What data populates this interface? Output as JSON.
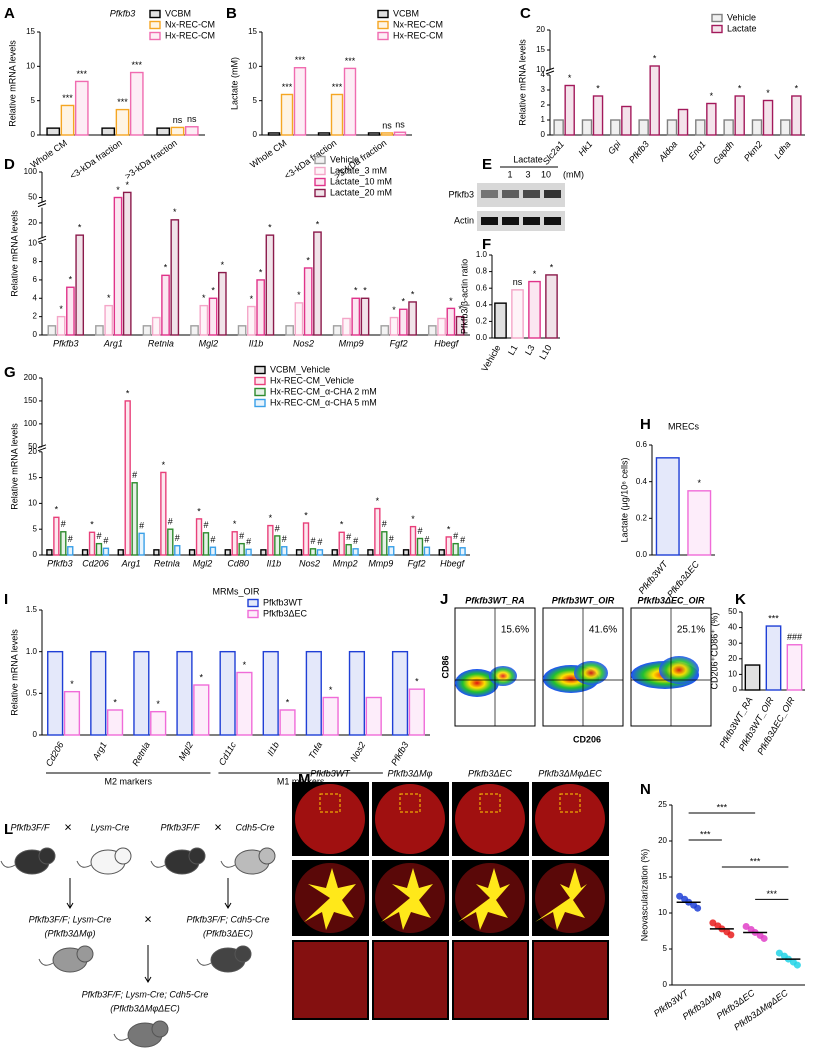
{
  "chart_data": [
    {
      "type": "bar",
      "panel": "A",
      "title": "Pfkfb3",
      "ylabel": "Relative mRNA levels",
      "categories": [
        "Whole CM",
        "<3-kDa fraction",
        ">3-kDa fraction"
      ],
      "series": [
        {
          "name": "VCBM",
          "color": "#000000",
          "values": [
            1,
            1,
            1
          ]
        },
        {
          "name": "Nx-REC-CM",
          "color": "#f5a623",
          "values": [
            4.3,
            3.7,
            1.1
          ],
          "value_annotations": [
            "***",
            "***",
            "ns"
          ]
        },
        {
          "name": "Hx-REC-CM",
          "color": "#f06bb0",
          "values": [
            7.8,
            9.1,
            1.2
          ],
          "value_annotations": [
            "***",
            "***",
            "ns"
          ]
        }
      ],
      "ylim": [
        0,
        15
      ],
      "yticks": [
        0,
        5,
        10,
        15
      ]
    },
    {
      "type": "bar",
      "panel": "B",
      "ylabel": "Lactate (mM)",
      "categories": [
        "Whole CM",
        "<3-kDa fraction",
        ">3-kDa fraction"
      ],
      "series": [
        {
          "name": "VCBM",
          "color": "#000000",
          "values": [
            0.3,
            0.3,
            0.3
          ]
        },
        {
          "name": "Nx-REC-CM",
          "color": "#f5a623",
          "values": [
            5.9,
            5.9,
            0.3
          ],
          "value_annotations": [
            "***",
            "***",
            "ns"
          ]
        },
        {
          "name": "Hx-REC-CM",
          "color": "#f06bb0",
          "values": [
            9.8,
            9.7,
            0.4
          ],
          "value_annotations": [
            "***",
            "***",
            "ns"
          ]
        }
      ],
      "ylim": [
        0,
        15
      ],
      "yticks": [
        0,
        5,
        10,
        15
      ]
    },
    {
      "type": "bar",
      "panel": "C",
      "ylabel": "Relative mRNA levels",
      "categories": [
        "Slc2a1",
        "Hk1",
        "Gpi",
        "Pfkfb3",
        "Aldoa",
        "Eno1",
        "Gapdh",
        "Pkm2",
        "Ldha"
      ],
      "series": [
        {
          "name": "Vehicle",
          "color": "#808080",
          "values": [
            1,
            1,
            1,
            1,
            1,
            1,
            1,
            1,
            1
          ]
        },
        {
          "name": "Lactate",
          "color": "#a3195b",
          "values": [
            3.3,
            2.6,
            1.9,
            11,
            1.7,
            2.1,
            2.6,
            2.3,
            2.6
          ],
          "value_annotations": [
            "*",
            "*",
            null,
            "*",
            null,
            "*",
            "*",
            "*",
            "*"
          ]
        }
      ],
      "ylim": [
        0,
        20
      ],
      "ysegments": [
        [
          0,
          4
        ],
        [
          10,
          20
        ]
      ],
      "yticks": [
        0,
        1,
        2,
        3,
        4,
        10,
        15,
        20
      ]
    },
    {
      "type": "bar",
      "panel": "D",
      "ylabel": "Relative mRNA levels",
      "categories": [
        "Pfkfb3",
        "Arg1",
        "Retnla",
        "Mgl2",
        "Il1b",
        "Nos2",
        "Mmp9",
        "Fgf2",
        "Hbegf"
      ],
      "series": [
        {
          "name": "Vehicle",
          "color": "#a0a0a0",
          "values": [
            1,
            1,
            1,
            1,
            1,
            1,
            1,
            1,
            1
          ]
        },
        {
          "name": "Lactate_3 mM",
          "color": "#f4a6c8",
          "values": [
            2,
            3.2,
            1.9,
            3.2,
            3.1,
            3.5,
            1.8,
            1.9,
            1.8
          ],
          "value_annotations": [
            "*",
            "*",
            null,
            "*",
            "*",
            "*",
            null,
            "*",
            null
          ]
        },
        {
          "name": "Lactate_10 mM",
          "color": "#e0338a",
          "values": [
            5.2,
            50,
            6.5,
            4,
            6,
            7.3,
            4,
            2.8,
            2.9
          ],
          "value_annotations": [
            "*",
            "*",
            "*",
            "*",
            "*",
            "*",
            "*",
            "*",
            "*"
          ]
        },
        {
          "name": "Lactate_20 mM",
          "color": "#8b1a4b",
          "values": [
            16,
            60,
            21,
            6.8,
            16,
            17,
            4,
            3.6,
            2
          ],
          "value_annotations": [
            "*",
            "*",
            "*",
            "*",
            "*",
            "*",
            "*",
            "*",
            "*"
          ]
        }
      ],
      "ylim": [
        0,
        100
      ],
      "ysegments": [
        [
          0,
          10
        ],
        [
          15,
          25
        ],
        [
          40,
          100
        ]
      ],
      "yticks": [
        0,
        2,
        4,
        6,
        8,
        10,
        20,
        50,
        100
      ]
    },
    {
      "type": "bar",
      "panel": "F",
      "ylabel": "Pfkfb3/β-actin ratio",
      "categories": [
        "Vehicle",
        "L1",
        "L3",
        "L10"
      ],
      "values": [
        0.42,
        0.58,
        0.68,
        0.76
      ],
      "colors": [
        "#000000",
        "#f4a6c8",
        "#e0338a",
        "#8b1a4b"
      ],
      "value_annotations": [
        null,
        "ns",
        "*",
        "*"
      ],
      "ylim": [
        0,
        1
      ],
      "yticks": [
        {
          "value": 0,
          "label": "0.0"
        },
        0.2,
        0.4,
        0.6,
        0.8,
        {
          "value": 1,
          "label": "1.0"
        }
      ]
    },
    {
      "type": "bar",
      "panel": "G",
      "ylabel": "Relative mRNA levels",
      "categories": [
        "Pfkfb3",
        "Cd206",
        "Arg1",
        "Retnla",
        "Mgl2",
        "Cd80",
        "Il1b",
        "Nos2",
        "Mmp2",
        "Mmp9",
        "Fgf2",
        "Hbegf"
      ],
      "series": [
        {
          "name": "VCBM_Vehicle",
          "color": "#000000",
          "values": [
            1,
            1,
            1,
            1,
            1,
            1,
            1,
            1,
            1,
            1,
            1,
            1
          ]
        },
        {
          "name": "Hx-REC-CM_Vehicle",
          "color": "#e8407a",
          "values": [
            7.3,
            4.4,
            150,
            16,
            7,
            4.5,
            5.7,
            6.2,
            4.4,
            9,
            5.5,
            3.5
          ],
          "value_annotations": [
            "*",
            "*",
            "*",
            "*",
            "*",
            "*",
            "*",
            "*",
            "*",
            "*",
            "*",
            "*"
          ]
        },
        {
          "name": "Hx-REC-CM_α-CHA 2 mM",
          "color": "#2e8b2e",
          "values": [
            4.5,
            2.2,
            14,
            5,
            4.3,
            2.2,
            3.7,
            1.2,
            2,
            4.5,
            3.2,
            2.2
          ],
          "value_annotations": [
            "#",
            "#",
            "#",
            "#",
            "#",
            "#",
            "#",
            "#",
            "#",
            "#",
            "#",
            "#"
          ]
        },
        {
          "name": "Hx-REC-CM_α-CHA 5 mM",
          "color": "#3aa0e8",
          "values": [
            1.6,
            1.3,
            4.2,
            1.8,
            1.5,
            1.1,
            1.6,
            1,
            1.2,
            1.6,
            1.5,
            1.4
          ],
          "value_annotations": [
            "#",
            "#",
            "#",
            "#",
            "#",
            "#",
            "#",
            "#",
            "#",
            "#",
            "#",
            "#"
          ]
        }
      ],
      "ylim": [
        0,
        200
      ],
      "ysegments": [
        [
          0,
          20
        ],
        [
          50,
          200
        ]
      ],
      "yticks": [
        0,
        5,
        10,
        15,
        20,
        50,
        100,
        150,
        200
      ]
    },
    {
      "type": "bar",
      "panel": "H",
      "title": "MRECs",
      "ylabel": "Lactate (μg/10⁶ cells)",
      "categories": [
        "Pfkfb3WT",
        "Pfkfb3ΔEC"
      ],
      "values": [
        0.53,
        0.35
      ],
      "colors": [
        "#1f3fd6",
        "#f06bd8"
      ],
      "value_annotations": [
        null,
        "*"
      ],
      "ylim": [
        0,
        0.6
      ],
      "yticks": [
        {
          "value": 0,
          "label": "0.0"
        },
        0.2,
        0.4,
        0.6
      ]
    },
    {
      "type": "bar",
      "panel": "I",
      "title": "MRMs_OIR",
      "ylabel": "Relative mRNA levels",
      "categories": [
        "Cd206",
        "Arg1",
        "Retnla",
        "Mgl2",
        "Cd11c",
        "Il1b",
        "Tnfa",
        "Nos2",
        "Pfkfb3"
      ],
      "group_labels": [
        "M2 markers",
        "M1 markers"
      ],
      "series": [
        {
          "name": "Pfkfb3WT",
          "color": "#1f3fd6",
          "values": [
            1,
            1,
            1,
            1,
            1,
            1,
            1,
            1,
            1
          ]
        },
        {
          "name": "Pfkfb3ΔEC",
          "color": "#f06bd8",
          "values": [
            0.52,
            0.3,
            0.28,
            0.6,
            0.75,
            0.3,
            0.45,
            0.45,
            0.55
          ],
          "value_annotations": [
            "*",
            "*",
            "*",
            "*",
            "*",
            "*",
            "*",
            null,
            "*"
          ]
        }
      ],
      "ylim": [
        0,
        1.5
      ],
      "yticks": [
        0,
        0.5,
        {
          "value": 1,
          "label": "1.0"
        },
        1.5
      ]
    },
    {
      "type": "bar",
      "panel": "K",
      "ylabel": "CD206⁺CD86⁺ (%)",
      "categories": [
        "Pfkfb3WT_RA",
        "Pfkfb3WT_OIR",
        "Pfkfb3ΔEC_OIR"
      ],
      "values": [
        16,
        41,
        29
      ],
      "colors": [
        "#000000",
        "#1f3fd6",
        "#f06bd8"
      ],
      "value_annotations": [
        null,
        "***",
        "###"
      ],
      "ylim": [
        0,
        50
      ],
      "yticks": [
        0,
        10,
        20,
        30,
        40,
        50
      ]
    },
    {
      "type": "dot",
      "panel": "N",
      "ylabel": "Neovascularization (%)",
      "categories": [
        "Pfkfb3WT",
        "Pfkfb3ΔMφ",
        "Pfkfb3ΔEC",
        "Pfkfb3ΔMφΔEC"
      ],
      "values": [
        11.5,
        7.8,
        7.3,
        3.6
      ],
      "colors": [
        "#1f3fd6",
        "#e81c1c",
        "#e040c8",
        "#22d3e6"
      ],
      "comparisons": [
        "***",
        "***",
        "***",
        "***"
      ],
      "ylim": [
        0,
        25
      ],
      "yticks": [
        0,
        5,
        10,
        15,
        20,
        25
      ]
    }
  ],
  "figure": {
    "E": {
      "panel": "E",
      "header": "Lactate",
      "doses": [
        "1",
        "3",
        "10"
      ],
      "unit": "(mM)",
      "rows": [
        "Pfkfb3",
        "Actin"
      ]
    },
    "J": {
      "panel": "J",
      "ylabel": "CD86",
      "xlabel": "CD206",
      "plots": [
        {
          "title": "Pfkfb3WT_RA",
          "percent": "15.6%"
        },
        {
          "title": "Pfkfb3WT_OIR",
          "percent": "41.6%"
        },
        {
          "title": "Pfkfb3ΔEC_OIR",
          "percent": "25.1%"
        }
      ]
    },
    "L": {
      "panel": "L",
      "cross": "×",
      "labels": [
        "Pfkfb3F/F",
        "Lysm-Cre",
        "Pfkfb3F/F",
        "Cdh5-Cre",
        "Pfkfb3F/F; Lysm-Cre",
        "(Pfkfb3ΔMφ)",
        "Pfkfb3F/F; Cdh5-Cre",
        "(Pfkfb3ΔEC)",
        "Pfkfb3F/F; Lysm-Cre; Cdh5-Cre",
        "(Pfkfb3ΔMφΔEC)"
      ]
    },
    "M": {
      "panel": "M",
      "columns": [
        "Pfkfb3WT",
        "Pfkfb3ΔMφ",
        "Pfkfb3ΔEC",
        "Pfkfb3ΔMφΔEC"
      ]
    }
  }
}
